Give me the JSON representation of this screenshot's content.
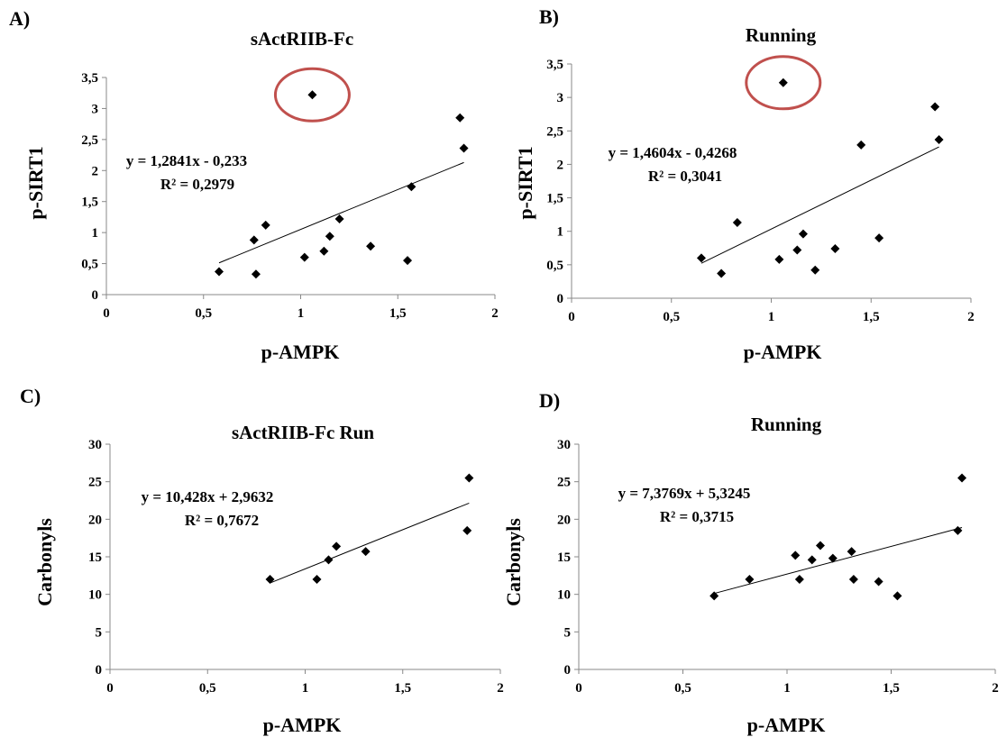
{
  "chart_data": [
    {
      "type": "scatter",
      "panel_label": "A)",
      "title": "sActRIIB-Fc",
      "xlabel": "p-AMPK",
      "ylabel": "p-SIRT1",
      "xlim": [
        0,
        2
      ],
      "ylim": [
        0,
        3.5
      ],
      "xticks": [
        "0",
        "0,5",
        "1",
        "1,5",
        "2"
      ],
      "yticks": [
        "0",
        "0,5",
        "1",
        "1,5",
        "2",
        "2,5",
        "3",
        "3,5"
      ],
      "grid": false,
      "points": [
        {
          "x": 0.58,
          "y": 0.37
        },
        {
          "x": 0.76,
          "y": 0.88
        },
        {
          "x": 0.77,
          "y": 0.33
        },
        {
          "x": 0.82,
          "y": 1.12
        },
        {
          "x": 1.02,
          "y": 0.6
        },
        {
          "x": 1.06,
          "y": 3.22
        },
        {
          "x": 1.12,
          "y": 0.7
        },
        {
          "x": 1.15,
          "y": 0.94
        },
        {
          "x": 1.2,
          "y": 1.22
        },
        {
          "x": 1.36,
          "y": 0.78
        },
        {
          "x": 1.55,
          "y": 0.55
        },
        {
          "x": 1.57,
          "y": 1.74
        },
        {
          "x": 1.82,
          "y": 2.85
        },
        {
          "x": 1.84,
          "y": 2.36
        }
      ],
      "highlighted_point_index": 5,
      "highlight_color": "#c0504d",
      "trendline": {
        "slope": 1.2841,
        "intercept": -0.233,
        "x_range": [
          0.58,
          1.84
        ]
      },
      "equation": "y = 1,2841x - 0,233",
      "r2": "R² = 0,2979"
    },
    {
      "type": "scatter",
      "panel_label": "B)",
      "title": "Running",
      "xlabel": "p-AMPK",
      "ylabel": "p-SIRT1",
      "xlim": [
        0,
        2
      ],
      "ylim": [
        0,
        3.5
      ],
      "xticks": [
        "0",
        "0,5",
        "1",
        "1,5",
        "2"
      ],
      "yticks": [
        "0",
        "0,5",
        "1",
        "1,5",
        "2",
        "2,5",
        "3",
        "3,5"
      ],
      "grid": false,
      "points": [
        {
          "x": 0.65,
          "y": 0.6
        },
        {
          "x": 0.75,
          "y": 0.37
        },
        {
          "x": 0.83,
          "y": 1.13
        },
        {
          "x": 1.04,
          "y": 0.58
        },
        {
          "x": 1.06,
          "y": 3.22
        },
        {
          "x": 1.13,
          "y": 0.72
        },
        {
          "x": 1.16,
          "y": 0.96
        },
        {
          "x": 1.22,
          "y": 0.42
        },
        {
          "x": 1.32,
          "y": 0.74
        },
        {
          "x": 1.45,
          "y": 2.29
        },
        {
          "x": 1.54,
          "y": 0.9
        },
        {
          "x": 1.82,
          "y": 2.86
        },
        {
          "x": 1.84,
          "y": 2.37
        }
      ],
      "highlighted_point_index": 4,
      "highlight_color": "#c0504d",
      "trendline": {
        "slope": 1.4604,
        "intercept": -0.4268,
        "x_range": [
          0.65,
          1.84
        ]
      },
      "equation": "y = 1,4604x - 0,4268",
      "r2": "R² = 0,3041"
    },
    {
      "type": "scatter",
      "panel_label": "C)",
      "title": "sActRIIB-Fc Run",
      "xlabel": "p-AMPK",
      "ylabel": "Carbonyls",
      "xlim": [
        0,
        2
      ],
      "ylim": [
        0,
        30
      ],
      "xticks": [
        "0",
        "0,5",
        "1",
        "1,5",
        "2"
      ],
      "yticks": [
        "0",
        "5",
        "10",
        "15",
        "20",
        "25",
        "30"
      ],
      "grid": false,
      "points": [
        {
          "x": 0.82,
          "y": 12.0
        },
        {
          "x": 1.06,
          "y": 12.0
        },
        {
          "x": 1.12,
          "y": 14.6
        },
        {
          "x": 1.16,
          "y": 16.4
        },
        {
          "x": 1.31,
          "y": 15.7
        },
        {
          "x": 1.83,
          "y": 18.5
        },
        {
          "x": 1.84,
          "y": 25.5
        }
      ],
      "trendline": {
        "slope": 10.428,
        "intercept": 2.9632,
        "x_range": [
          0.82,
          1.84
        ]
      },
      "equation": "y = 10,428x + 2,9632",
      "r2": "R² = 0,7672"
    },
    {
      "type": "scatter",
      "panel_label": "D)",
      "title": "Running",
      "xlabel": "p-AMPK",
      "ylabel": "Carbonyls",
      "xlim": [
        0,
        2
      ],
      "ylim": [
        0,
        30
      ],
      "xticks": [
        "0",
        "0,5",
        "1",
        "1,5",
        "2"
      ],
      "yticks": [
        "0",
        "5",
        "10",
        "15",
        "20",
        "25",
        "30"
      ],
      "grid": false,
      "points": [
        {
          "x": 0.65,
          "y": 9.8
        },
        {
          "x": 0.82,
          "y": 12.0
        },
        {
          "x": 1.04,
          "y": 15.2
        },
        {
          "x": 1.06,
          "y": 12.0
        },
        {
          "x": 1.12,
          "y": 14.6
        },
        {
          "x": 1.16,
          "y": 16.5
        },
        {
          "x": 1.22,
          "y": 14.8
        },
        {
          "x": 1.31,
          "y": 15.7
        },
        {
          "x": 1.32,
          "y": 12.0
        },
        {
          "x": 1.44,
          "y": 11.7
        },
        {
          "x": 1.53,
          "y": 9.8
        },
        {
          "x": 1.82,
          "y": 18.5
        },
        {
          "x": 1.84,
          "y": 25.5
        }
      ],
      "trendline": {
        "slope": 7.3769,
        "intercept": 5.3245,
        "x_range": [
          0.65,
          1.84
        ]
      },
      "equation": "y = 7,3769x + 5,3245",
      "r2": "R² = 0,3715"
    }
  ]
}
